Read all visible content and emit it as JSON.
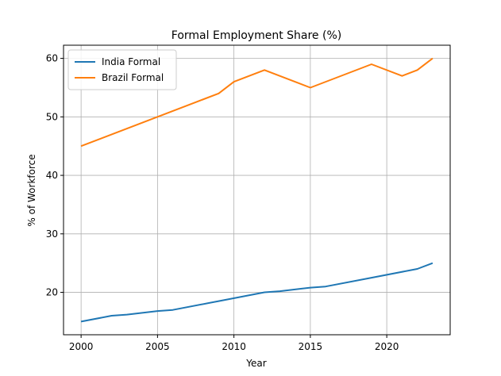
{
  "chart_data": {
    "type": "line",
    "title": "Formal Employment Share (%)",
    "xlabel": "Year",
    "ylabel": "% of Workforce",
    "xlim": [
      1998.85,
      2024.15
    ],
    "ylim": [
      12.75,
      62.25
    ],
    "xticks": [
      2000,
      2005,
      2010,
      2015,
      2020
    ],
    "yticks": [
      20,
      30,
      40,
      50,
      60
    ],
    "grid": true,
    "legend_position": "top-left",
    "series": [
      {
        "name": "India Formal",
        "color": "#1f77b4",
        "x": [
          2000,
          2002,
          2003,
          2005,
          2006,
          2009,
          2012,
          2013,
          2015,
          2016,
          2019,
          2022,
          2023
        ],
        "y": [
          15.0,
          16.0,
          16.2,
          16.8,
          17.0,
          18.5,
          20.0,
          20.2,
          20.8,
          21.0,
          22.5,
          24.0,
          25.0
        ]
      },
      {
        "name": "Brazil Formal",
        "color": "#ff7f0e",
        "x": [
          2000,
          2005,
          2009,
          2010,
          2012,
          2015,
          2019,
          2021,
          2022,
          2023
        ],
        "y": [
          45.0,
          50.0,
          54.0,
          56.0,
          58.0,
          55.0,
          59.0,
          57.0,
          58.0,
          60.0
        ]
      }
    ]
  }
}
